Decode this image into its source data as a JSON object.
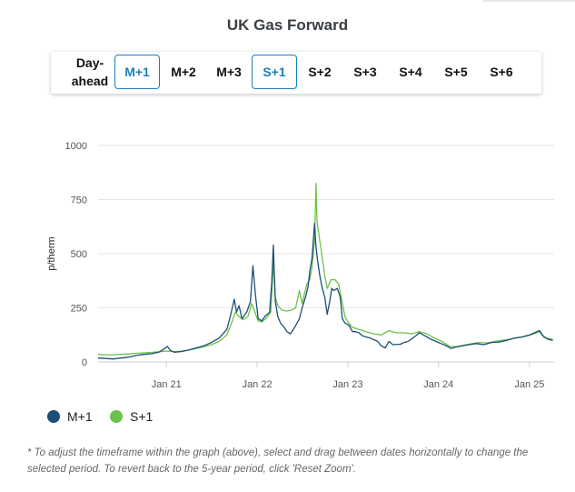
{
  "title": "UK Gas Forward",
  "tabs": [
    {
      "line1": "Day-",
      "line2": "ahead",
      "active": false
    },
    {
      "label": "M+1",
      "active": true
    },
    {
      "label": "M+2",
      "active": false
    },
    {
      "label": "M+3",
      "active": false
    },
    {
      "label": "S+1",
      "active": true
    },
    {
      "label": "S+2",
      "active": false
    },
    {
      "label": "S+3",
      "active": false
    },
    {
      "label": "S+4",
      "active": false
    },
    {
      "label": "S+5",
      "active": false
    },
    {
      "label": "S+6",
      "active": false
    }
  ],
  "colors": {
    "m1": "#1d4f76",
    "s1": "#6cc24a",
    "active_tab": "#1a7fbf"
  },
  "note": "* To adjust the timeframe within the graph (above), select and drag between dates horizontally to change the selected period. To revert back to the 5-year period, click 'Reset Zoom'.",
  "chart_data": {
    "type": "line",
    "title": "UK Gas Forward",
    "ylabel": "p/therm",
    "ylim": [
      0,
      1000
    ],
    "yticks": [
      0,
      250,
      500,
      750,
      1000
    ],
    "xlim": [
      "2020-04-01",
      "2025-04-10"
    ],
    "xticks": [
      "2021-01-01",
      "2022-01-01",
      "2023-01-01",
      "2024-01-01",
      "2025-01-01"
    ],
    "xtick_labels": [
      "Jan 21",
      "Jan 22",
      "Jan 23",
      "Jan 24",
      "Jan 25"
    ],
    "grid": true,
    "legend": "bottom-left",
    "series": [
      {
        "name": "M+1",
        "color": "#1d4f76",
        "points": [
          [
            "2020-04-01",
            18
          ],
          [
            "2020-05-01",
            16
          ],
          [
            "2020-06-01",
            14
          ],
          [
            "2020-07-01",
            18
          ],
          [
            "2020-08-01",
            22
          ],
          [
            "2020-09-01",
            30
          ],
          [
            "2020-10-01",
            35
          ],
          [
            "2020-11-01",
            38
          ],
          [
            "2020-12-01",
            45
          ],
          [
            "2020-12-20",
            58
          ],
          [
            "2021-01-05",
            72
          ],
          [
            "2021-01-15",
            55
          ],
          [
            "2021-02-01",
            45
          ],
          [
            "2021-03-01",
            48
          ],
          [
            "2021-04-01",
            55
          ],
          [
            "2021-05-01",
            65
          ],
          [
            "2021-06-01",
            75
          ],
          [
            "2021-07-01",
            90
          ],
          [
            "2021-08-01",
            110
          ],
          [
            "2021-09-01",
            150
          ],
          [
            "2021-09-15",
            210
          ],
          [
            "2021-10-01",
            290
          ],
          [
            "2021-10-10",
            230
          ],
          [
            "2021-10-20",
            260
          ],
          [
            "2021-11-01",
            200
          ],
          [
            "2021-11-20",
            230
          ],
          [
            "2021-12-05",
            280
          ],
          [
            "2021-12-15",
            445
          ],
          [
            "2021-12-25",
            310
          ],
          [
            "2022-01-05",
            200
          ],
          [
            "2022-01-20",
            190
          ],
          [
            "2022-02-01",
            210
          ],
          [
            "2022-02-20",
            230
          ],
          [
            "2022-03-01",
            370
          ],
          [
            "2022-03-07",
            540
          ],
          [
            "2022-03-15",
            280
          ],
          [
            "2022-03-25",
            210
          ],
          [
            "2022-04-05",
            180
          ],
          [
            "2022-04-20",
            160
          ],
          [
            "2022-05-01",
            140
          ],
          [
            "2022-05-15",
            130
          ],
          [
            "2022-06-01",
            160
          ],
          [
            "2022-06-20",
            200
          ],
          [
            "2022-07-01",
            250
          ],
          [
            "2022-07-15",
            300
          ],
          [
            "2022-07-25",
            350
          ],
          [
            "2022-08-01",
            420
          ],
          [
            "2022-08-10",
            480
          ],
          [
            "2022-08-20",
            640
          ],
          [
            "2022-08-26",
            530
          ],
          [
            "2022-09-01",
            470
          ],
          [
            "2022-09-10",
            400
          ],
          [
            "2022-09-20",
            340
          ],
          [
            "2022-09-30",
            300
          ],
          [
            "2022-10-10",
            220
          ],
          [
            "2022-10-20",
            280
          ],
          [
            "2022-10-28",
            340
          ],
          [
            "2022-11-05",
            330
          ],
          [
            "2022-11-20",
            340
          ],
          [
            "2022-12-01",
            300
          ],
          [
            "2022-12-10",
            200
          ],
          [
            "2022-12-20",
            180
          ],
          [
            "2023-01-05",
            170
          ],
          [
            "2023-01-20",
            140
          ],
          [
            "2023-02-01",
            140
          ],
          [
            "2023-02-15",
            135
          ],
          [
            "2023-03-01",
            120
          ],
          [
            "2023-04-01",
            110
          ],
          [
            "2023-05-01",
            95
          ],
          [
            "2023-05-15",
            75
          ],
          [
            "2023-06-01",
            65
          ],
          [
            "2023-06-15",
            95
          ],
          [
            "2023-07-01",
            80
          ],
          [
            "2023-08-01",
            82
          ],
          [
            "2023-08-15",
            90
          ],
          [
            "2023-09-01",
            95
          ],
          [
            "2023-10-01",
            120
          ],
          [
            "2023-10-15",
            135
          ],
          [
            "2023-11-01",
            125
          ],
          [
            "2023-12-01",
            105
          ],
          [
            "2024-01-01",
            90
          ],
          [
            "2024-02-01",
            75
          ],
          [
            "2024-02-20",
            62
          ],
          [
            "2024-03-15",
            70
          ],
          [
            "2024-05-01",
            80
          ],
          [
            "2024-06-01",
            85
          ],
          [
            "2024-07-01",
            80
          ],
          [
            "2024-08-01",
            90
          ],
          [
            "2024-09-01",
            92
          ],
          [
            "2024-10-01",
            100
          ],
          [
            "2024-11-01",
            110
          ],
          [
            "2024-12-01",
            115
          ],
          [
            "2025-01-01",
            125
          ],
          [
            "2025-02-10",
            145
          ],
          [
            "2025-02-25",
            120
          ],
          [
            "2025-03-15",
            105
          ],
          [
            "2025-04-05",
            100
          ]
        ]
      },
      {
        "name": "S+1",
        "color": "#6cc24a",
        "points": [
          [
            "2020-04-01",
            35
          ],
          [
            "2020-05-01",
            33
          ],
          [
            "2020-06-01",
            33
          ],
          [
            "2020-07-01",
            35
          ],
          [
            "2020-08-01",
            37
          ],
          [
            "2020-09-01",
            40
          ],
          [
            "2020-10-01",
            42
          ],
          [
            "2020-11-01",
            44
          ],
          [
            "2020-12-01",
            47
          ],
          [
            "2021-01-01",
            50
          ],
          [
            "2021-02-01",
            48
          ],
          [
            "2021-03-01",
            50
          ],
          [
            "2021-04-01",
            55
          ],
          [
            "2021-05-01",
            62
          ],
          [
            "2021-06-01",
            70
          ],
          [
            "2021-07-01",
            80
          ],
          [
            "2021-08-01",
            95
          ],
          [
            "2021-09-01",
            125
          ],
          [
            "2021-09-20",
            180
          ],
          [
            "2021-10-05",
            230
          ],
          [
            "2021-10-20",
            210
          ],
          [
            "2021-11-05",
            195
          ],
          [
            "2021-11-25",
            210
          ],
          [
            "2021-12-10",
            270
          ],
          [
            "2021-12-20",
            240
          ],
          [
            "2022-01-05",
            190
          ],
          [
            "2022-01-20",
            185
          ],
          [
            "2022-02-05",
            200
          ],
          [
            "2022-02-25",
            230
          ],
          [
            "2022-03-02",
            340
          ],
          [
            "2022-03-07",
            460
          ],
          [
            "2022-03-15",
            300
          ],
          [
            "2022-03-25",
            260
          ],
          [
            "2022-04-10",
            240
          ],
          [
            "2022-05-01",
            235
          ],
          [
            "2022-05-20",
            240
          ],
          [
            "2022-06-05",
            250
          ],
          [
            "2022-06-20",
            330
          ],
          [
            "2022-07-01",
            270
          ],
          [
            "2022-07-20",
            360
          ],
          [
            "2022-08-01",
            380
          ],
          [
            "2022-08-10",
            440
          ],
          [
            "2022-08-20",
            560
          ],
          [
            "2022-08-26",
            825
          ],
          [
            "2022-08-30",
            650
          ],
          [
            "2022-09-10",
            560
          ],
          [
            "2022-09-20",
            480
          ],
          [
            "2022-09-30",
            400
          ],
          [
            "2022-10-10",
            340
          ],
          [
            "2022-10-25",
            380
          ],
          [
            "2022-11-10",
            380
          ],
          [
            "2022-11-25",
            360
          ],
          [
            "2022-12-05",
            300
          ],
          [
            "2022-12-20",
            210
          ],
          [
            "2023-01-05",
            180
          ],
          [
            "2023-01-20",
            160
          ],
          [
            "2023-02-15",
            150
          ],
          [
            "2023-03-15",
            140
          ],
          [
            "2023-04-15",
            130
          ],
          [
            "2023-05-15",
            125
          ],
          [
            "2023-06-15",
            145
          ],
          [
            "2023-07-15",
            135
          ],
          [
            "2023-08-15",
            135
          ],
          [
            "2023-09-15",
            130
          ],
          [
            "2023-10-15",
            140
          ],
          [
            "2023-11-15",
            130
          ],
          [
            "2023-12-15",
            110
          ],
          [
            "2024-01-15",
            95
          ],
          [
            "2024-02-15",
            72
          ],
          [
            "2024-03-15",
            70
          ],
          [
            "2024-04-15",
            78
          ],
          [
            "2024-05-15",
            85
          ],
          [
            "2024-06-15",
            90
          ],
          [
            "2024-07-15",
            88
          ],
          [
            "2024-08-15",
            95
          ],
          [
            "2024-09-15",
            100
          ],
          [
            "2024-10-15",
            105
          ],
          [
            "2024-11-15",
            112
          ],
          [
            "2024-12-15",
            118
          ],
          [
            "2025-01-15",
            128
          ],
          [
            "2025-02-10",
            140
          ],
          [
            "2025-03-01",
            112
          ],
          [
            "2025-04-05",
            105
          ]
        ]
      }
    ]
  }
}
